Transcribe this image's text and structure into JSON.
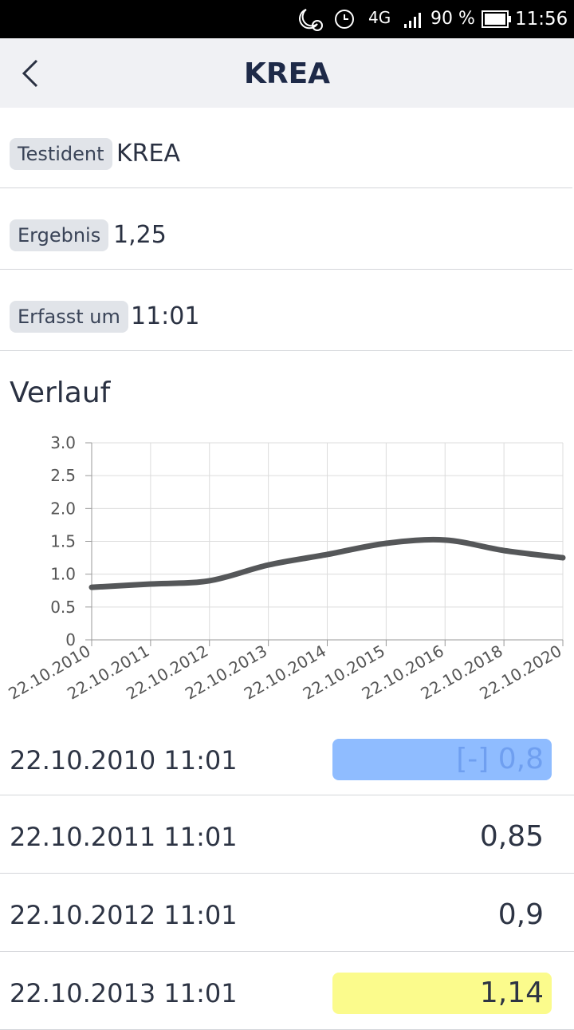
{
  "status_bar": {
    "network": "4G",
    "battery": "90 %",
    "time": "11:56"
  },
  "header": {
    "title": "KREA"
  },
  "fields": [
    {
      "label": "Testident",
      "value": "KREA"
    },
    {
      "label": "Ergebnis",
      "value": "1,25"
    },
    {
      "label": "Erfasst um",
      "value": "11:01"
    }
  ],
  "section_title": "Verlauf",
  "chart_data": {
    "type": "line",
    "categories": [
      "22.10.2010",
      "22.10.2011",
      "22.10.2012",
      "22.10.2013",
      "22.10.2014",
      "22.10.2015",
      "22.10.2016",
      "22.10.2018",
      "22.10.2020"
    ],
    "values": [
      0.8,
      0.85,
      0.9,
      1.14,
      1.3,
      1.47,
      1.52,
      1.36,
      1.25
    ],
    "color": "#555759",
    "ylim": [
      0,
      3
    ],
    "yticks": [
      0,
      0.5,
      {
        "value": 1,
        "label": "1.0"
      },
      1.5,
      {
        "value": 2,
        "label": "2.0"
      },
      2.5,
      {
        "value": 3,
        "label": "3.0"
      }
    ],
    "grid": true
  },
  "list": [
    {
      "date": "22.10.2010 11:01",
      "value": "[-] 0,8",
      "highlight": "#8fbcff",
      "text_color": "#6f9ff0"
    },
    {
      "date": "22.10.2011 11:01",
      "value": "0,85"
    },
    {
      "date": "22.10.2012 11:01",
      "value": "0,9"
    },
    {
      "date": "22.10.2013 11:01",
      "value": "1,14",
      "highlight": "#fbfb8c"
    }
  ]
}
